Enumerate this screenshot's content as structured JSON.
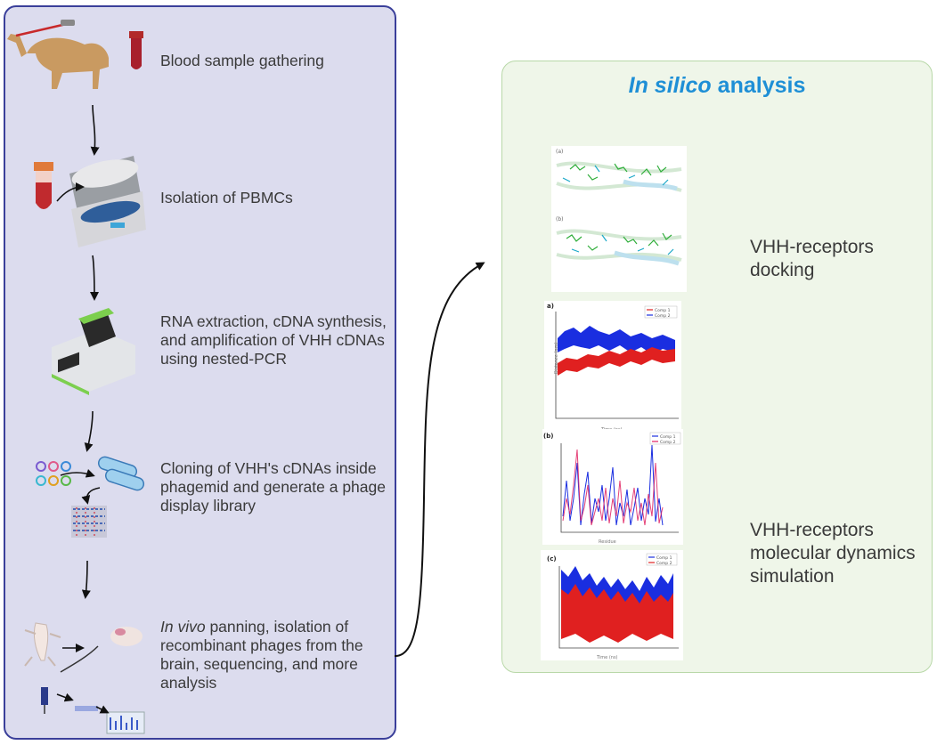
{
  "workflow": {
    "steps": [
      {
        "id": "blood",
        "text_lines": [
          "Blood sample gathering"
        ]
      },
      {
        "id": "pbmc",
        "text_lines": [
          "Isolation of PBMCs"
        ]
      },
      {
        "id": "rna",
        "text_lines": [
          "RNA extraction, cDNA synthesis,",
          "and amplification of VHH cDNAs",
          "using nested-PCR"
        ]
      },
      {
        "id": "cloning",
        "text_lines": [
          "Cloning of VHH's cDNAs inside",
          "phagemid and generate a phage",
          "display library"
        ]
      },
      {
        "id": "panning",
        "italic_lead": "In vivo",
        "text_lines": [
          " panning, isolation of",
          "recombinant phages from the",
          "brain, sequencing, and more",
          "analysis"
        ]
      }
    ]
  },
  "in_silico": {
    "title_italic": "In silico",
    "title_rest": " analysis",
    "docking_label_lines": [
      "VHH-receptors",
      "docking"
    ],
    "md_label_lines": [
      "VHH-receptors",
      "molecular dynamics",
      "simulation"
    ],
    "docking_panels": [
      "(a)",
      "(b)"
    ],
    "md_charts": [
      {
        "panel": "a)",
        "legend": [
          "Comp 1",
          "Comp 2"
        ],
        "colors": [
          "#e02020",
          "#1a2ee0"
        ]
      },
      {
        "panel": "(b)",
        "legend": [
          "Comp 1",
          "Comp 2"
        ],
        "colors": [
          "#1a2ee0",
          "#e02060"
        ]
      },
      {
        "panel": "(c)",
        "legend": [
          "Comp 1",
          "Comp 2"
        ],
        "colors": [
          "#1a2ee0",
          "#e02020"
        ]
      }
    ]
  }
}
